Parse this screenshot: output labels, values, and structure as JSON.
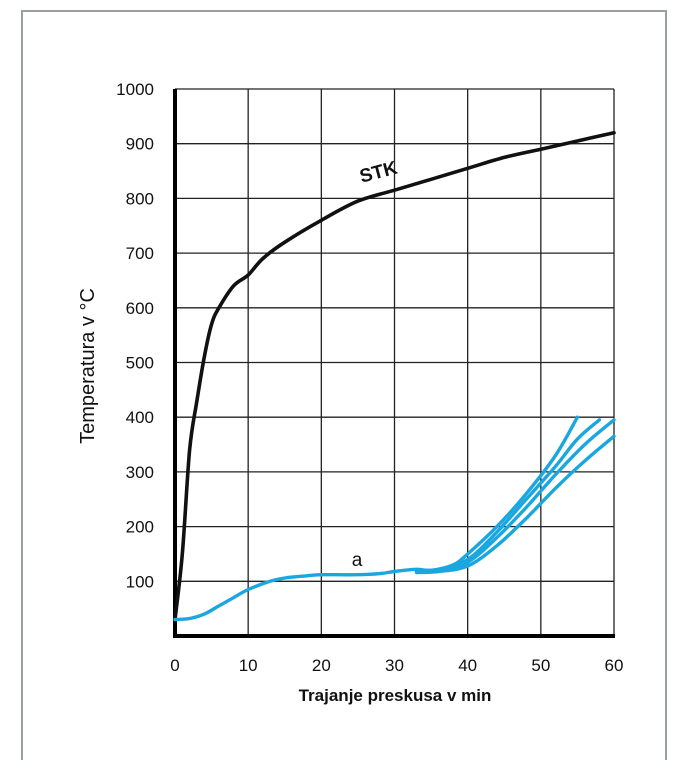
{
  "chart_data": {
    "type": "line",
    "xlabel": "Trajanje preskusa v min",
    "ylabel": "Temperatura v °C",
    "xlim": [
      0,
      60
    ],
    "ylim": [
      0,
      1000
    ],
    "x_ticks": [
      "0",
      "10",
      "20",
      "30",
      "40",
      "50",
      "60"
    ],
    "y_ticks": [
      "100",
      "200",
      "300",
      "400",
      "500",
      "600",
      "700",
      "800",
      "900",
      "1000"
    ],
    "grid": true,
    "colors": {
      "stk": "#111111",
      "a": "#1aa7e0",
      "grid": "#222222"
    },
    "series": [
      {
        "name": "STK",
        "points": [
          [
            0,
            30
          ],
          [
            1,
            150
          ],
          [
            2,
            340
          ],
          [
            3,
            430
          ],
          [
            4,
            510
          ],
          [
            5,
            570
          ],
          [
            6,
            600
          ],
          [
            8,
            640
          ],
          [
            10,
            660
          ],
          [
            12,
            690
          ],
          [
            15,
            720
          ],
          [
            20,
            760
          ],
          [
            25,
            795
          ],
          [
            30,
            815
          ],
          [
            35,
            835
          ],
          [
            40,
            855
          ],
          [
            45,
            875
          ],
          [
            50,
            890
          ],
          [
            55,
            905
          ],
          [
            60,
            920
          ]
        ]
      },
      {
        "name": "a",
        "points": [
          [
            0,
            30
          ],
          [
            2,
            32
          ],
          [
            4,
            40
          ],
          [
            6,
            55
          ],
          [
            8,
            70
          ],
          [
            10,
            85
          ],
          [
            13,
            100
          ],
          [
            15,
            106
          ],
          [
            18,
            110
          ],
          [
            20,
            112
          ],
          [
            25,
            112
          ],
          [
            28,
            114
          ],
          [
            30,
            118
          ],
          [
            33,
            122
          ],
          [
            35,
            120
          ],
          [
            38,
            130
          ],
          [
            40,
            150
          ],
          [
            44,
            200
          ],
          [
            48,
            260
          ],
          [
            52,
            330
          ],
          [
            55,
            400
          ]
        ]
      },
      {
        "points": [
          [
            33,
            120
          ],
          [
            36,
            122
          ],
          [
            40,
            140
          ],
          [
            44,
            190
          ],
          [
            48,
            250
          ],
          [
            52,
            310
          ],
          [
            55,
            360
          ],
          [
            58,
            395
          ]
        ]
      },
      {
        "points": [
          [
            33,
            118
          ],
          [
            36,
            120
          ],
          [
            40,
            135
          ],
          [
            44,
            180
          ],
          [
            48,
            235
          ],
          [
            52,
            295
          ],
          [
            56,
            350
          ],
          [
            60,
            395
          ]
        ]
      },
      {
        "points": [
          [
            33,
            116
          ],
          [
            36,
            118
          ],
          [
            40,
            128
          ],
          [
            44,
            165
          ],
          [
            48,
            215
          ],
          [
            52,
            270
          ],
          [
            56,
            320
          ],
          [
            60,
            365
          ]
        ]
      }
    ]
  }
}
